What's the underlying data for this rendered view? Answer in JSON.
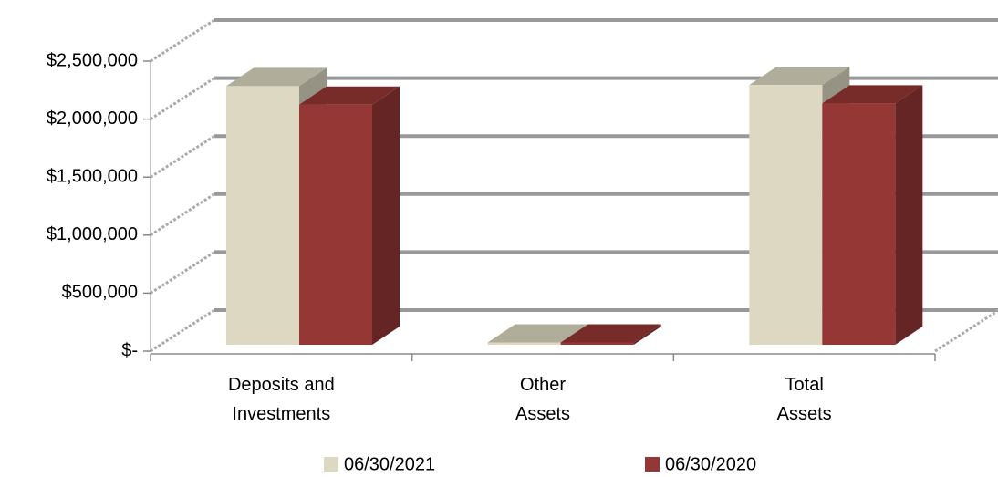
{
  "chart_data": {
    "type": "bar3d",
    "categories": [
      "Deposits and\nInvestments",
      "Other\nAssets",
      "Total\nAssets"
    ],
    "series": [
      {
        "name": "06/30/2021",
        "color": "#ddd8c2",
        "values": [
          2230000,
          20000,
          2240000
        ]
      },
      {
        "name": "06/30/2020",
        "color": "#953735",
        "values": [
          2070000,
          20000,
          2080000
        ]
      }
    ],
    "ylim": [
      0,
      2500000
    ],
    "yticks": [
      {
        "value": 0,
        "label": "$-"
      },
      {
        "value": 500000,
        "label": "$500,000"
      },
      {
        "value": 1000000,
        "label": "$1,000,000"
      },
      {
        "value": 1500000,
        "label": "$1,500,000"
      },
      {
        "value": 2000000,
        "label": "$2,000,000"
      },
      {
        "value": 2500000,
        "label": "$2,500,000"
      }
    ],
    "grid": true,
    "legend": "bottom"
  }
}
